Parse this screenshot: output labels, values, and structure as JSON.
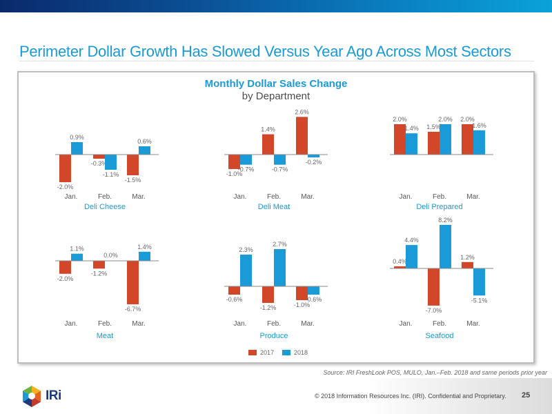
{
  "slide": {
    "title": "Perimeter Dollar Growth Has Slowed Versus Year Ago Across Most Sectors",
    "source": "Source: IRI FreshLook POS, MULO, Jan.–Feb. 2018 and same periods prior year",
    "copyright": "© 2018 Information Resources Inc. (IRI). Confidential and Proprietary.",
    "page_number": "25",
    "logo_text": "IRi"
  },
  "colors": {
    "series_2017": "#d2472a",
    "series_2018": "#1a9ad6",
    "accent": "#1a9ad6"
  },
  "chart_data": {
    "type": "bar",
    "title": "Monthly Dollar Sales Change",
    "subtitle": "by Department",
    "categories": [
      "Jan.",
      "Feb.",
      "Mar."
    ],
    "legend": {
      "position": "bottom-center",
      "entries": [
        "2017",
        "2018"
      ]
    },
    "panels": [
      {
        "name": "Deli Cheese",
        "series": [
          {
            "name": "2017",
            "values": [
              -2.0,
              -0.3,
              -1.5
            ],
            "labels": [
              "-2.0%",
              "-0.3%",
              "-1.5%"
            ]
          },
          {
            "name": "2018",
            "values": [
              0.9,
              -1.1,
              0.6
            ],
            "labels": [
              "0.9%",
              "-1.1%",
              "0.6%"
            ]
          }
        ]
      },
      {
        "name": "Deli Meat",
        "series": [
          {
            "name": "2017",
            "values": [
              -1.0,
              1.4,
              2.6
            ],
            "labels": [
              "-1.0%",
              "1.4%",
              "2.6%"
            ]
          },
          {
            "name": "2018",
            "values": [
              -0.7,
              -0.7,
              -0.2
            ],
            "labels": [
              "-0.7%",
              "-0.7%",
              "-0.2%"
            ]
          }
        ]
      },
      {
        "name": "Deli Prepared",
        "series": [
          {
            "name": "2017",
            "values": [
              2.0,
              1.5,
              2.0
            ],
            "labels": [
              "2.0%",
              "1.5%",
              "2.0%"
            ]
          },
          {
            "name": "2018",
            "values": [
              1.4,
              2.0,
              1.6
            ],
            "labels": [
              "1.4%",
              "2.0%",
              "1.6%"
            ]
          }
        ]
      },
      {
        "name": "Meat",
        "series": [
          {
            "name": "2017",
            "values": [
              -2.0,
              -1.2,
              -6.7
            ],
            "labels": [
              "-2.0%",
              "-1.2%",
              "-6.7%"
            ]
          },
          {
            "name": "2018",
            "values": [
              1.1,
              0.0,
              1.4
            ],
            "labels": [
              "1.1%",
              "0.0%",
              "1.4%"
            ]
          }
        ]
      },
      {
        "name": "Produce",
        "series": [
          {
            "name": "2017",
            "values": [
              -0.6,
              -1.2,
              -1.0
            ],
            "labels": [
              "-0.6%",
              "-1.2%",
              "-1.0%"
            ]
          },
          {
            "name": "2018",
            "values": [
              2.3,
              2.7,
              -0.6
            ],
            "labels": [
              "2.3%",
              "2.7%",
              "-0.6%"
            ]
          }
        ]
      },
      {
        "name": "Seafood",
        "series": [
          {
            "name": "2017",
            "values": [
              0.4,
              -7.0,
              1.2
            ],
            "labels": [
              "0.4%",
              "-7.0%",
              "1.2%"
            ]
          },
          {
            "name": "2018",
            "values": [
              4.4,
              8.2,
              -5.1
            ],
            "labels": [
              "4.4%",
              "8.2%",
              "-5.1%"
            ]
          }
        ]
      }
    ]
  }
}
